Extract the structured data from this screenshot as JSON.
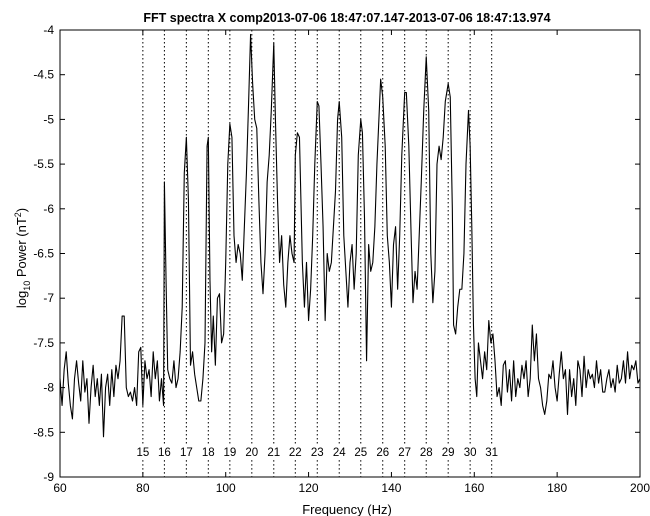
{
  "chart_data": {
    "type": "line",
    "title": "FFT spectra X comp2013-07-06 18:47:07.147-2013-07-06 18:47:13.974",
    "xlabel": "Frequency (Hz)",
    "ylabel": {
      "prefix": "log",
      "subscript": "10",
      "middle": " Power (nT",
      "superscript": "2",
      "suffix": ")"
    },
    "xlim": [
      60,
      200
    ],
    "ylim": [
      -9,
      -4
    ],
    "xticks": [
      60,
      80,
      100,
      120,
      140,
      160,
      180,
      200
    ],
    "yticks": [
      -9,
      -8.5,
      -8,
      -7.5,
      -7,
      -6.5,
      -6,
      -5.5,
      -5,
      -4.5,
      -4
    ],
    "grid": false,
    "harmonic_lines": {
      "style": "dotted",
      "positions": [
        80,
        85.2,
        90.5,
        95.8,
        101,
        106.3,
        111.6,
        116.8,
        122.1,
        127.4,
        132.6,
        137.9,
        143.2,
        148.4,
        153.7,
        159,
        164.2
      ],
      "labels": [
        "15",
        "16",
        "17",
        "18",
        "19",
        "20",
        "21",
        "22",
        "23",
        "24",
        "25",
        "26",
        "27",
        "28",
        "29",
        "30",
        "31"
      ]
    },
    "series": [
      {
        "color": "#000000",
        "points": [
          [
            60,
            -7.9
          ],
          [
            60.5,
            -8.2
          ],
          [
            61,
            -7.8
          ],
          [
            61.5,
            -7.6
          ],
          [
            62,
            -7.95
          ],
          [
            62.5,
            -8.2
          ],
          [
            63,
            -8.35
          ],
          [
            63.5,
            -7.9
          ],
          [
            64,
            -7.7
          ],
          [
            64.5,
            -7.95
          ],
          [
            65,
            -8.15
          ],
          [
            65.5,
            -7.7
          ],
          [
            66,
            -8.05
          ],
          [
            66.5,
            -7.9
          ],
          [
            67,
            -8.4
          ],
          [
            67.5,
            -8.0
          ],
          [
            68,
            -7.75
          ],
          [
            68.5,
            -8.1
          ],
          [
            69,
            -7.9
          ],
          [
            69.5,
            -8.2
          ],
          [
            70,
            -7.85
          ],
          [
            70.5,
            -8.55
          ],
          [
            71,
            -8.0
          ],
          [
            71.5,
            -7.85
          ],
          [
            72,
            -8.2
          ],
          [
            72.5,
            -7.8
          ],
          [
            73,
            -8.1
          ],
          [
            73.5,
            -7.75
          ],
          [
            74,
            -7.9
          ],
          [
            74.5,
            -7.7
          ],
          [
            75,
            -7.2
          ],
          [
            75.5,
            -7.2
          ],
          [
            76,
            -8.0
          ],
          [
            76.5,
            -8.1
          ],
          [
            77,
            -8.05
          ],
          [
            77.5,
            -8.15
          ],
          [
            78,
            -8.0
          ],
          [
            78.5,
            -8.2
          ],
          [
            79,
            -7.6
          ],
          [
            79.5,
            -7.55
          ],
          [
            80,
            -8.2
          ],
          [
            80.5,
            -7.7
          ],
          [
            81,
            -7.9
          ],
          [
            81.5,
            -7.8
          ],
          [
            82,
            -8.1
          ],
          [
            82.5,
            -7.6
          ],
          [
            83,
            -7.9
          ],
          [
            83.5,
            -7.7
          ],
          [
            84,
            -8.15
          ],
          [
            84.5,
            -7.9
          ],
          [
            85,
            -8.2
          ],
          [
            85.2,
            -5.7
          ],
          [
            85.6,
            -6.8
          ],
          [
            86,
            -7.8
          ],
          [
            86.5,
            -7.9
          ],
          [
            87,
            -7.95
          ],
          [
            87.5,
            -7.7
          ],
          [
            88,
            -8.0
          ],
          [
            88.5,
            -7.9
          ],
          [
            89,
            -7.6
          ],
          [
            89.5,
            -7.1
          ],
          [
            90,
            -5.6
          ],
          [
            90.5,
            -5.2
          ],
          [
            91,
            -5.9
          ],
          [
            91.5,
            -7.75
          ],
          [
            92,
            -7.6
          ],
          [
            92.5,
            -7.85
          ],
          [
            93,
            -8.0
          ],
          [
            93.5,
            -8.15
          ],
          [
            94,
            -8.15
          ],
          [
            94.5,
            -7.9
          ],
          [
            95,
            -7.5
          ],
          [
            95.5,
            -5.3
          ],
          [
            95.8,
            -5.2
          ],
          [
            96.2,
            -6.8
          ],
          [
            96.6,
            -7.6
          ],
          [
            97,
            -7.2
          ],
          [
            97.5,
            -7.75
          ],
          [
            98,
            -7.0
          ],
          [
            98.5,
            -6.95
          ],
          [
            99,
            -7.5
          ],
          [
            99.5,
            -7.4
          ],
          [
            100,
            -6.6
          ],
          [
            100.5,
            -5.5
          ],
          [
            101,
            -5.05
          ],
          [
            101.5,
            -5.2
          ],
          [
            102,
            -6.3
          ],
          [
            102.5,
            -6.6
          ],
          [
            103,
            -6.4
          ],
          [
            103.5,
            -6.5
          ],
          [
            104,
            -6.8
          ],
          [
            104.5,
            -6.2
          ],
          [
            105,
            -5.6
          ],
          [
            105.5,
            -4.85
          ],
          [
            106,
            -4.05
          ],
          [
            106.5,
            -4.6
          ],
          [
            107,
            -5.0
          ],
          [
            107.5,
            -5.1
          ],
          [
            108,
            -5.9
          ],
          [
            108.5,
            -6.6
          ],
          [
            109,
            -6.95
          ],
          [
            109.5,
            -6.5
          ],
          [
            110,
            -5.7
          ],
          [
            110.5,
            -5.4
          ],
          [
            111,
            -4.9
          ],
          [
            111.6,
            -4.15
          ],
          [
            112,
            -5.0
          ],
          [
            112.5,
            -5.9
          ],
          [
            113,
            -6.6
          ],
          [
            113.5,
            -6.3
          ],
          [
            114,
            -6.85
          ],
          [
            114.5,
            -7.1
          ],
          [
            115,
            -6.6
          ],
          [
            115.5,
            -6.3
          ],
          [
            116,
            -6.5
          ],
          [
            116.5,
            -6.6
          ],
          [
            116.8,
            -5.4
          ],
          [
            117.3,
            -5.15
          ],
          [
            117.8,
            -5.2
          ],
          [
            118.5,
            -6.6
          ],
          [
            119,
            -7.1
          ],
          [
            119.5,
            -6.6
          ],
          [
            120,
            -7.25
          ],
          [
            120.5,
            -6.9
          ],
          [
            121,
            -6.3
          ],
          [
            121.5,
            -5.5
          ],
          [
            122.1,
            -4.8
          ],
          [
            122.5,
            -4.85
          ],
          [
            123,
            -5.5
          ],
          [
            123.5,
            -6.2
          ],
          [
            124,
            -7.25
          ],
          [
            124.5,
            -6.5
          ],
          [
            125,
            -6.7
          ],
          [
            125.5,
            -6.6
          ],
          [
            126,
            -6.2
          ],
          [
            126.5,
            -5.8
          ],
          [
            127,
            -5.0
          ],
          [
            127.4,
            -4.8
          ],
          [
            128,
            -5.2
          ],
          [
            128.5,
            -6.3
          ],
          [
            129,
            -6.7
          ],
          [
            129.5,
            -7.1
          ],
          [
            130,
            -6.6
          ],
          [
            130.5,
            -6.4
          ],
          [
            131,
            -6.9
          ],
          [
            131.5,
            -6.5
          ],
          [
            132,
            -5.4
          ],
          [
            132.6,
            -5.0
          ],
          [
            133,
            -5.15
          ],
          [
            133.5,
            -6.1
          ],
          [
            134,
            -7.7
          ],
          [
            134.5,
            -6.4
          ],
          [
            135,
            -6.7
          ],
          [
            135.5,
            -6.6
          ],
          [
            136,
            -6.2
          ],
          [
            136.5,
            -5.5
          ],
          [
            137.4,
            -4.55
          ],
          [
            137.9,
            -4.75
          ],
          [
            138.5,
            -5.3
          ],
          [
            139,
            -6.3
          ],
          [
            139.5,
            -6.6
          ],
          [
            140,
            -7.1
          ],
          [
            140.5,
            -6.4
          ],
          [
            141,
            -6.2
          ],
          [
            141.5,
            -6.9
          ],
          [
            142,
            -6.3
          ],
          [
            142.5,
            -5.4
          ],
          [
            143.2,
            -4.7
          ],
          [
            143.6,
            -4.7
          ],
          [
            144.2,
            -5.3
          ],
          [
            144.7,
            -6.2
          ],
          [
            145.2,
            -7.05
          ],
          [
            145.7,
            -6.7
          ],
          [
            146.2,
            -6.9
          ],
          [
            146.7,
            -6.3
          ],
          [
            147.2,
            -5.7
          ],
          [
            147.8,
            -4.9
          ],
          [
            148.4,
            -4.3
          ],
          [
            149,
            -4.9
          ],
          [
            149.5,
            -6.5
          ],
          [
            150,
            -7.05
          ],
          [
            150.5,
            -6.7
          ],
          [
            151,
            -5.5
          ],
          [
            151.5,
            -5.3
          ],
          [
            152,
            -5.45
          ],
          [
            152.5,
            -5.2
          ],
          [
            153,
            -4.8
          ],
          [
            153.7,
            -4.6
          ],
          [
            154.2,
            -4.75
          ],
          [
            154.7,
            -6.0
          ],
          [
            155,
            -7.3
          ],
          [
            155.5,
            -7.4
          ],
          [
            156,
            -7.1
          ],
          [
            156.5,
            -6.9
          ],
          [
            157,
            -6.9
          ],
          [
            157.5,
            -6.5
          ],
          [
            158,
            -5.5
          ],
          [
            158.6,
            -4.9
          ],
          [
            159,
            -5.3
          ],
          [
            159.4,
            -6.2
          ],
          [
            159.8,
            -7.3
          ],
          [
            160.2,
            -7.9
          ],
          [
            160.6,
            -8.1
          ],
          [
            161,
            -7.5
          ],
          [
            161.5,
            -7.7
          ],
          [
            162,
            -7.9
          ],
          [
            162.5,
            -7.6
          ],
          [
            163,
            -7.8
          ],
          [
            163.5,
            -7.25
          ],
          [
            164,
            -7.5
          ],
          [
            164.5,
            -7.4
          ],
          [
            165,
            -7.7
          ],
          [
            165.5,
            -8.1
          ],
          [
            166,
            -8.0
          ],
          [
            166.5,
            -8.2
          ],
          [
            167,
            -7.75
          ],
          [
            167.5,
            -7.7
          ],
          [
            168,
            -8.05
          ],
          [
            168.5,
            -7.8
          ],
          [
            169,
            -8.15
          ],
          [
            169.5,
            -7.7
          ],
          [
            170,
            -8.1
          ],
          [
            170.5,
            -7.9
          ],
          [
            171,
            -8.0
          ],
          [
            171.5,
            -7.75
          ],
          [
            172,
            -7.9
          ],
          [
            172.5,
            -7.7
          ],
          [
            173,
            -8.1
          ],
          [
            173.5,
            -7.9
          ],
          [
            174,
            -7.3
          ],
          [
            174.5,
            -7.7
          ],
          [
            175,
            -7.4
          ],
          [
            175.5,
            -7.9
          ],
          [
            176,
            -8.0
          ],
          [
            176.5,
            -8.2
          ],
          [
            177,
            -8.3
          ],
          [
            177.5,
            -8.15
          ],
          [
            178,
            -7.85
          ],
          [
            178.5,
            -7.9
          ],
          [
            179,
            -7.7
          ],
          [
            179.5,
            -8.0
          ],
          [
            180,
            -8.15
          ],
          [
            180.5,
            -7.85
          ],
          [
            181,
            -7.6
          ],
          [
            181.5,
            -7.9
          ],
          [
            182,
            -7.8
          ],
          [
            182.5,
            -8.3
          ],
          [
            183,
            -7.8
          ],
          [
            183.5,
            -8.1
          ],
          [
            184,
            -7.9
          ],
          [
            184.5,
            -8.2
          ],
          [
            185,
            -7.7
          ],
          [
            185.5,
            -7.8
          ],
          [
            186,
            -8.1
          ],
          [
            186.5,
            -7.65
          ],
          [
            187,
            -8.0
          ],
          [
            187.5,
            -7.8
          ],
          [
            188,
            -7.9
          ],
          [
            188.5,
            -7.85
          ],
          [
            189,
            -8.0
          ],
          [
            189.5,
            -7.7
          ],
          [
            190,
            -7.95
          ],
          [
            190.5,
            -7.8
          ],
          [
            191,
            -8.05
          ],
          [
            191.5,
            -8.05
          ],
          [
            192,
            -7.9
          ],
          [
            192.5,
            -7.8
          ],
          [
            193,
            -8.0
          ],
          [
            193.5,
            -7.9
          ],
          [
            194,
            -8.05
          ],
          [
            194.5,
            -7.75
          ],
          [
            195,
            -7.95
          ],
          [
            195.5,
            -7.9
          ],
          [
            196,
            -7.7
          ],
          [
            196.5,
            -7.95
          ],
          [
            197,
            -7.6
          ],
          [
            197.5,
            -7.9
          ],
          [
            198,
            -7.75
          ],
          [
            198.5,
            -7.8
          ],
          [
            199,
            -7.7
          ],
          [
            199.5,
            -7.95
          ],
          [
            200,
            -7.9
          ]
        ]
      }
    ]
  }
}
